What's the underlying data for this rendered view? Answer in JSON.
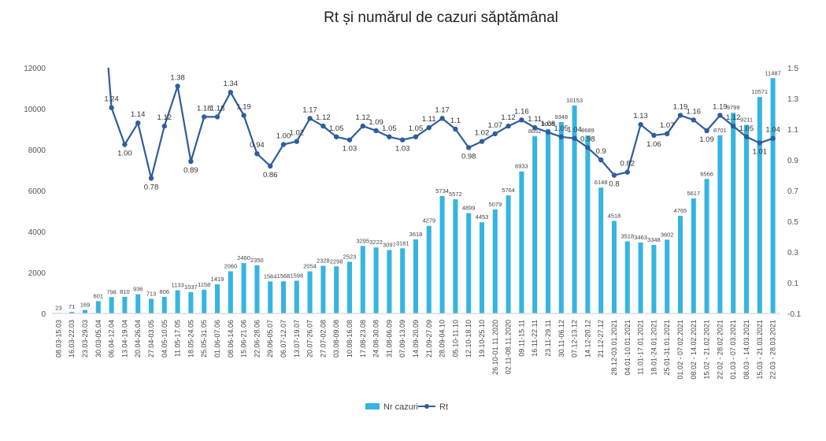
{
  "chart_data": {
    "type": "bar",
    "title": "Rt și numărul de cazuri săptămânal",
    "categories": [
      "08.03-15.03",
      "16.03-22.03",
      "23.03-29.03",
      "30.03-05.04",
      "06.04-12.04",
      "13.04-19.04",
      "20.04-26.04",
      "27.04-03.05",
      "04.05-10.05",
      "11.05-17.05",
      "18.05-24.05",
      "25.05-31.05",
      "01.06-07.06",
      "08.06-14.06",
      "15.06-21.06",
      "22.06-28.06",
      "29.06-05.07",
      "06.07-12.07",
      "13.07-19.07",
      "20.07-26.07",
      "27.07-02.08",
      "03.08-09.08",
      "10.08-16.08",
      "17.08-23.08",
      "24.08-30.08",
      "31.08-06.09",
      "07.09-13.09",
      "14.09-20.09",
      "21.09-27.09",
      "28.09-04.10",
      "05.10-11.10",
      "12.10-18.10",
      "19.10-25.10",
      "26.10-01.11.2020",
      "02.11-08.11.2020",
      "09.11-15.11",
      "16.11-22.11",
      "23.11-29.11",
      "30.11-06.12",
      "07.12-13.12",
      "14.12-20.12",
      "21.12-27.12",
      "28.12-03.01.2021",
      "04.01-10.01.2021",
      "11.01-17.01.2021",
      "18.01-24.01.2021",
      "25.01-31.01.2021",
      "01.02 - 07.02.2021",
      "08.02 - 14.02.2021",
      "15.02 - 21.02.2021",
      "22.02 - 28.02.2021",
      "01.03 - 07.03.2021",
      "08.03 - 14.03.2021",
      "15.03 - 21.03.2021",
      "22.03 - 28.03.2021"
    ],
    "series": [
      {
        "name": "Nr cazuri",
        "type": "bar",
        "axis": "left",
        "color": "#36b5e0",
        "values": [
          23,
          71,
          169,
          601,
          798,
          810,
          936,
          713,
          806,
          1133,
          1037,
          1158,
          1419,
          2060,
          2460,
          2350,
          1564,
          1568,
          1598,
          2054,
          2328,
          2298,
          2523,
          3295,
          3222,
          3097,
          3181,
          3618,
          4279,
          5734,
          5572,
          4899,
          4453,
          5079,
          5764,
          6933,
          8652,
          9008,
          9348,
          10153,
          8689,
          6148,
          4518,
          3518,
          3463,
          3348,
          3602,
          4765,
          5617,
          6566,
          8701,
          9799,
          9211,
          10571,
          11487
        ],
        "labels": [
          "23",
          "71",
          "169",
          "601",
          "798",
          "810",
          "936",
          "713",
          "806",
          "1133",
          "1037",
          "1158",
          "1419",
          "2060",
          "2460",
          "2350",
          "1564",
          "1568",
          "1598",
          "2054",
          "2328",
          "2298",
          "2523",
          "3295",
          "3222",
          "3097",
          "3181",
          "3618",
          "4279",
          "5734",
          "5572",
          "4899",
          "4453",
          "5079",
          "5764",
          "6933",
          "8652",
          "9008",
          "9348",
          "10153",
          "8689",
          "6148",
          "4518",
          "3518",
          "3463",
          "3348",
          "3602",
          "4765",
          "5617",
          "6566",
          "8701",
          "9799",
          "9211",
          "10571",
          "11487"
        ]
      },
      {
        "name": "Rt",
        "type": "line",
        "axis": "right",
        "color": "#2f5d9e",
        "start_value": 1.5,
        "values": [
          null,
          null,
          null,
          null,
          1.24,
          1.0,
          1.14,
          0.78,
          1.12,
          1.38,
          0.89,
          1.18,
          1.18,
          1.34,
          1.19,
          0.94,
          0.86,
          1.0,
          1.02,
          1.17,
          1.12,
          1.05,
          1.03,
          1.12,
          1.09,
          1.05,
          1.03,
          1.05,
          1.11,
          1.17,
          1.1,
          0.98,
          1.02,
          1.07,
          1.12,
          1.16,
          1.11,
          1.08,
          1.05,
          1.04,
          0.98,
          0.9,
          0.8,
          0.82,
          1.13,
          1.06,
          1.07,
          1.19,
          1.16,
          1.09,
          1.19,
          1.12,
          1.05,
          1.01,
          1.04
        ],
        "labels": [
          "",
          "",
          "",
          "",
          "1.24",
          "1.00",
          "1.14",
          "0.78",
          "1.12",
          "1.38",
          "0.89",
          "1.18",
          "1.18",
          "1.34",
          "1.19",
          "0.94",
          "0.86",
          "1.00",
          "1.02",
          "1.17",
          "1.12",
          "1.05",
          "1.03",
          "1.12",
          "1.09",
          "1.05",
          "1.03",
          "1.05",
          "1.11",
          "1.17",
          "1.1",
          "0.98",
          "1.02",
          "1.07",
          "1.12",
          "1.16",
          "1.11",
          "1.08",
          "1.05",
          "1.04",
          "0.98",
          "0.9",
          "0.8",
          "0.82",
          "1.13",
          "1.06",
          "1.07",
          "1.19",
          "1.16",
          "1.09",
          "1.19",
          "1.12",
          "1.05",
          "1.01",
          "1.04"
        ]
      }
    ],
    "y_left": {
      "ylim": [
        0,
        12000
      ],
      "ticks": [
        "0",
        "2000",
        "4000",
        "6000",
        "8000",
        "10000",
        "12000"
      ]
    },
    "y_right": {
      "ylim": [
        -0.1,
        1.5
      ],
      "ticks": [
        "-0.1",
        "0.1",
        "0.3",
        "0.5",
        "0.7",
        "0.9",
        "1.1",
        "1.3",
        "1.5"
      ]
    },
    "grid": false,
    "legend_position": "bottom-center",
    "legend": [
      "Nr cazuri",
      "Rt"
    ]
  }
}
